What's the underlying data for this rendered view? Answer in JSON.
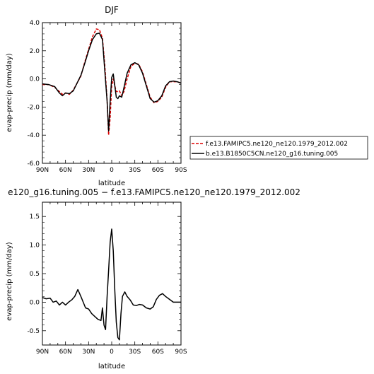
{
  "chart_data": [
    {
      "type": "line",
      "title": "DJF",
      "xlabel": "latitude",
      "ylabel": "evap-precip (mm/day)",
      "x_tick_labels": [
        "90N",
        "60N",
        "30N",
        "0",
        "30S",
        "60S",
        "90S"
      ],
      "y_tick_labels": [
        "-6.0",
        "-4.0",
        "-2.0",
        "0.0",
        "2.0",
        "4.0"
      ],
      "xlim": [
        90,
        -90
      ],
      "ylim": [
        -6,
        4
      ],
      "legend": "right",
      "series": [
        {
          "name": "f.e13.FAMIPC5.ne120_ne120.1979_2012.002",
          "color": "#dd0000",
          "dash": "dashed",
          "x": [
            90,
            82,
            74,
            68,
            64,
            60,
            55,
            50,
            45,
            40,
            35,
            30,
            25,
            20,
            16,
            12,
            9,
            6,
            4,
            2,
            0,
            -2,
            -4,
            -6,
            -8,
            -10,
            -13,
            -16,
            -20,
            -25,
            -30,
            -35,
            -40,
            -45,
            -50,
            -55,
            -60,
            -65,
            -70,
            -75,
            -80,
            -85,
            -90
          ],
          "y": [
            -0.4,
            -0.4,
            -0.6,
            -0.9,
            -1.1,
            -1.0,
            -1.1,
            -0.8,
            -0.3,
            0.2,
            1.2,
            2.1,
            3.0,
            3.55,
            3.5,
            2.9,
            1.0,
            -1.5,
            -4.0,
            -2.8,
            -0.5,
            0.0,
            -0.5,
            -0.9,
            -0.9,
            -0.85,
            -1.2,
            -0.9,
            0.0,
            0.9,
            1.1,
            1.05,
            0.5,
            -0.4,
            -1.3,
            -1.7,
            -1.6,
            -1.3,
            -0.6,
            -0.2,
            -0.2,
            -0.2,
            -0.3
          ]
        },
        {
          "name": "b.e13.B1850C5CN.ne120_g16.tuning.005",
          "color": "#000000",
          "dash": "solid",
          "x": [
            90,
            82,
            74,
            68,
            64,
            60,
            55,
            50,
            45,
            40,
            35,
            30,
            25,
            20,
            16,
            12,
            9,
            6,
            4,
            2,
            0,
            -2,
            -4,
            -6,
            -8,
            -10,
            -13,
            -16,
            -20,
            -25,
            -30,
            -35,
            -40,
            -45,
            -50,
            -55,
            -60,
            -65,
            -70,
            -75,
            -80,
            -85,
            -90
          ],
          "y": [
            -0.35,
            -0.4,
            -0.55,
            -1.0,
            -1.2,
            -1.0,
            -1.05,
            -0.85,
            -0.3,
            0.25,
            1.1,
            2.0,
            2.8,
            3.2,
            3.25,
            2.8,
            0.6,
            -1.6,
            -3.7,
            -1.6,
            0.1,
            0.35,
            -0.5,
            -1.3,
            -1.4,
            -1.2,
            -1.3,
            -0.6,
            0.4,
            1.0,
            1.15,
            1.0,
            0.4,
            -0.5,
            -1.4,
            -1.65,
            -1.55,
            -1.2,
            -0.5,
            -0.2,
            -0.15,
            -0.2,
            -0.3
          ]
        }
      ]
    },
    {
      "type": "line",
      "title": "e120_g16.tuning.005 − f.e13.FAMIPC5.ne120_ne120.1979_2012.002",
      "xlabel": "latitude",
      "ylabel": "evap-precip (mm/day)",
      "x_tick_labels": [
        "90N",
        "60N",
        "30N",
        "0",
        "30S",
        "60S",
        "90S"
      ],
      "y_tick_labels": [
        "-0.5",
        "0.0",
        "0.5",
        "1.0",
        "1.5"
      ],
      "xlim": [
        90,
        -90
      ],
      "ylim": [
        -0.75,
        1.75
      ],
      "series": [
        {
          "color": "#000000",
          "x": [
            90,
            85,
            80,
            76,
            72,
            68,
            64,
            60,
            56,
            52,
            48,
            44,
            40,
            37,
            34,
            30,
            26,
            22,
            18,
            14,
            12,
            10,
            8,
            6,
            4,
            2,
            0,
            -2,
            -4,
            -6,
            -8,
            -10,
            -12,
            -14,
            -17,
            -20,
            -24,
            -28,
            -32,
            -36,
            -40,
            -45,
            -50,
            -54,
            -58,
            -62,
            -66,
            -70,
            -75,
            -80,
            -85,
            -90
          ],
          "y": [
            0.08,
            0.06,
            0.07,
            0.0,
            0.02,
            -0.05,
            0.0,
            -0.05,
            0.0,
            0.04,
            0.1,
            0.22,
            0.1,
            0.0,
            -0.1,
            -0.12,
            -0.2,
            -0.25,
            -0.3,
            -0.32,
            -0.1,
            -0.4,
            -0.48,
            0.1,
            0.55,
            1.05,
            1.28,
            0.9,
            0.2,
            -0.35,
            -0.62,
            -0.66,
            -0.2,
            0.1,
            0.18,
            0.1,
            0.04,
            -0.05,
            -0.06,
            -0.04,
            -0.05,
            -0.1,
            -0.12,
            -0.08,
            0.05,
            0.12,
            0.15,
            0.1,
            0.05,
            0.0,
            0.0,
            0.0
          ]
        }
      ]
    }
  ]
}
